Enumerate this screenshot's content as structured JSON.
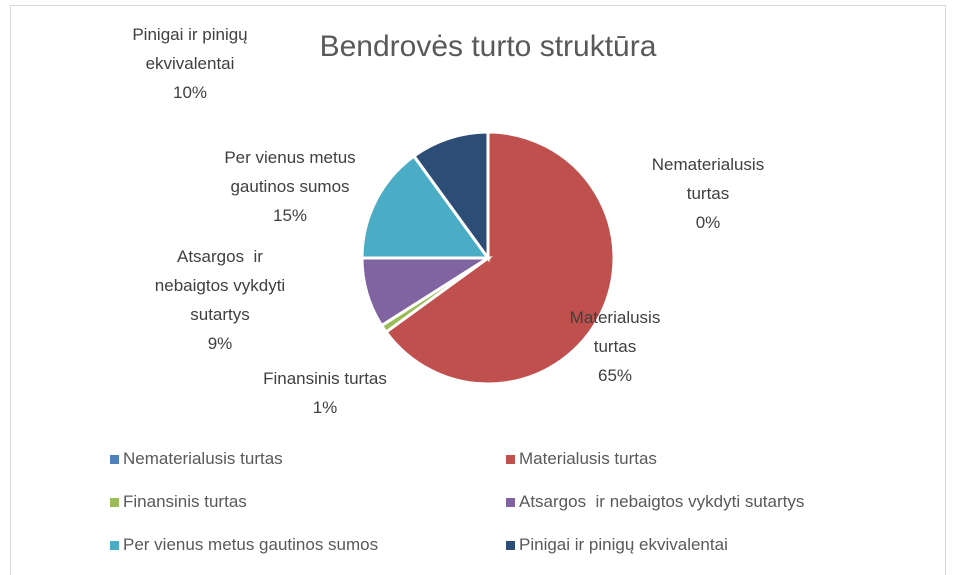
{
  "chart_data": {
    "type": "pie",
    "title": "Bendrovės turto struktūra",
    "categories": [
      "Nematerialusis turtas",
      "Materialusis turtas",
      "Finansinis turtas",
      "Atsargos  ir nebaigtos vykdyti sutartys",
      "Per vienus metus gautinos sumos",
      "Pinigai ir pinigų ekvivalentai"
    ],
    "values": [
      0,
      65,
      1,
      9,
      15,
      10
    ],
    "value_labels": [
      "0%",
      "65%",
      "1%",
      "9%",
      "15%",
      "10%"
    ],
    "colors": [
      "#4f81bd",
      "#c0504d",
      "#9bbb59",
      "#8064a2",
      "#4bacc6",
      "#2c4d75"
    ],
    "legend": "bottom"
  }
}
